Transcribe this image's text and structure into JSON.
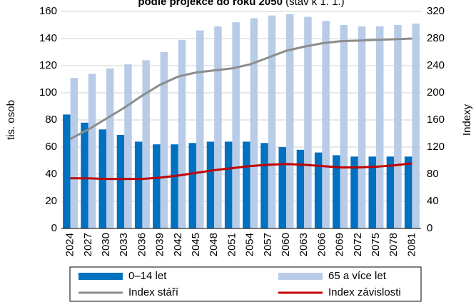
{
  "chart_data": {
    "type": "bar_line",
    "title": "podle projekce do roku 2050",
    "subtitle": "(stav k 1. 1.)",
    "ylabel": "tis. osob",
    "y2label": "Indexy",
    "categories": [
      "2024",
      "2027",
      "2030",
      "2033",
      "2036",
      "2039",
      "2042",
      "2045",
      "2048",
      "2051",
      "2054",
      "2057",
      "2060",
      "2063",
      "2066",
      "2069",
      "2072",
      "2075",
      "2078",
      "2081"
    ],
    "series": [
      {
        "name": "0–14 let",
        "type": "bar",
        "color": "#0070c0",
        "values": [
          84,
          78,
          73,
          69,
          64,
          62,
          62,
          63,
          64,
          64,
          64,
          63,
          60,
          58,
          56,
          54,
          53,
          53,
          53,
          53
        ]
      },
      {
        "name": "65 a více let",
        "type": "bar",
        "color": "#b8cce8",
        "values": [
          111,
          114,
          118,
          121,
          124,
          130,
          139,
          146,
          149,
          152,
          155,
          157,
          158,
          156,
          153,
          150,
          149,
          149,
          150,
          151
        ]
      },
      {
        "name": "Index stáří",
        "type": "line",
        "axis": "y2",
        "color": "#8c8c8c",
        "values": [
          132,
          146,
          162,
          178,
          196,
          212,
          224,
          230,
          233,
          236,
          242,
          252,
          262,
          268,
          273,
          276,
          277,
          278,
          279,
          280
        ]
      },
      {
        "name": "Index závislosti",
        "type": "line",
        "axis": "y2",
        "color": "#c00000",
        "values": [
          74,
          74,
          73,
          73,
          73,
          75,
          78,
          82,
          86,
          89,
          92,
          94,
          95,
          94,
          92,
          90,
          90,
          91,
          93,
          96
        ]
      }
    ],
    "ylim": [
      0,
      160
    ],
    "yticks": [
      0,
      20,
      40,
      60,
      80,
      100,
      120,
      140,
      160
    ],
    "y2lim": [
      0,
      320
    ],
    "y2ticks": [
      0,
      40,
      80,
      120,
      160,
      200,
      240,
      280,
      320
    ],
    "grid": true
  }
}
